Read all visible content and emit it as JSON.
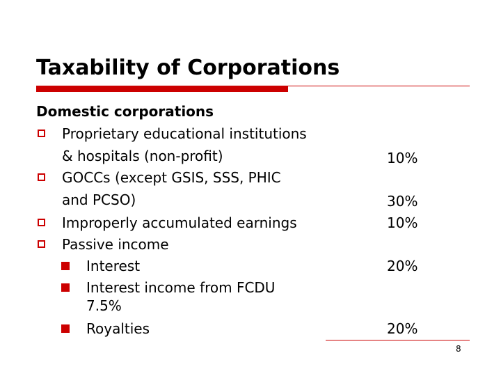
{
  "slide": {
    "title": "Taxability of Corporations",
    "heading": "Domestic corporations",
    "items": [
      "Proprietary educational institutions",
      "& hospitals (non-profit)",
      "GOCCs (except GSIS, SSS, PHIC",
      "and PCSO)",
      "Improperly accumulated earnings",
      "Passive income"
    ],
    "subitems": [
      "Interest",
      "Interest income from FCDU",
      "7.5%",
      "Royalties"
    ],
    "rates": [
      "10%",
      "30%",
      "10%",
      "20%",
      "20%"
    ],
    "page_number": "8"
  },
  "colors": {
    "accent": "#cc0000",
    "text": "#000000",
    "background": "#ffffff"
  }
}
